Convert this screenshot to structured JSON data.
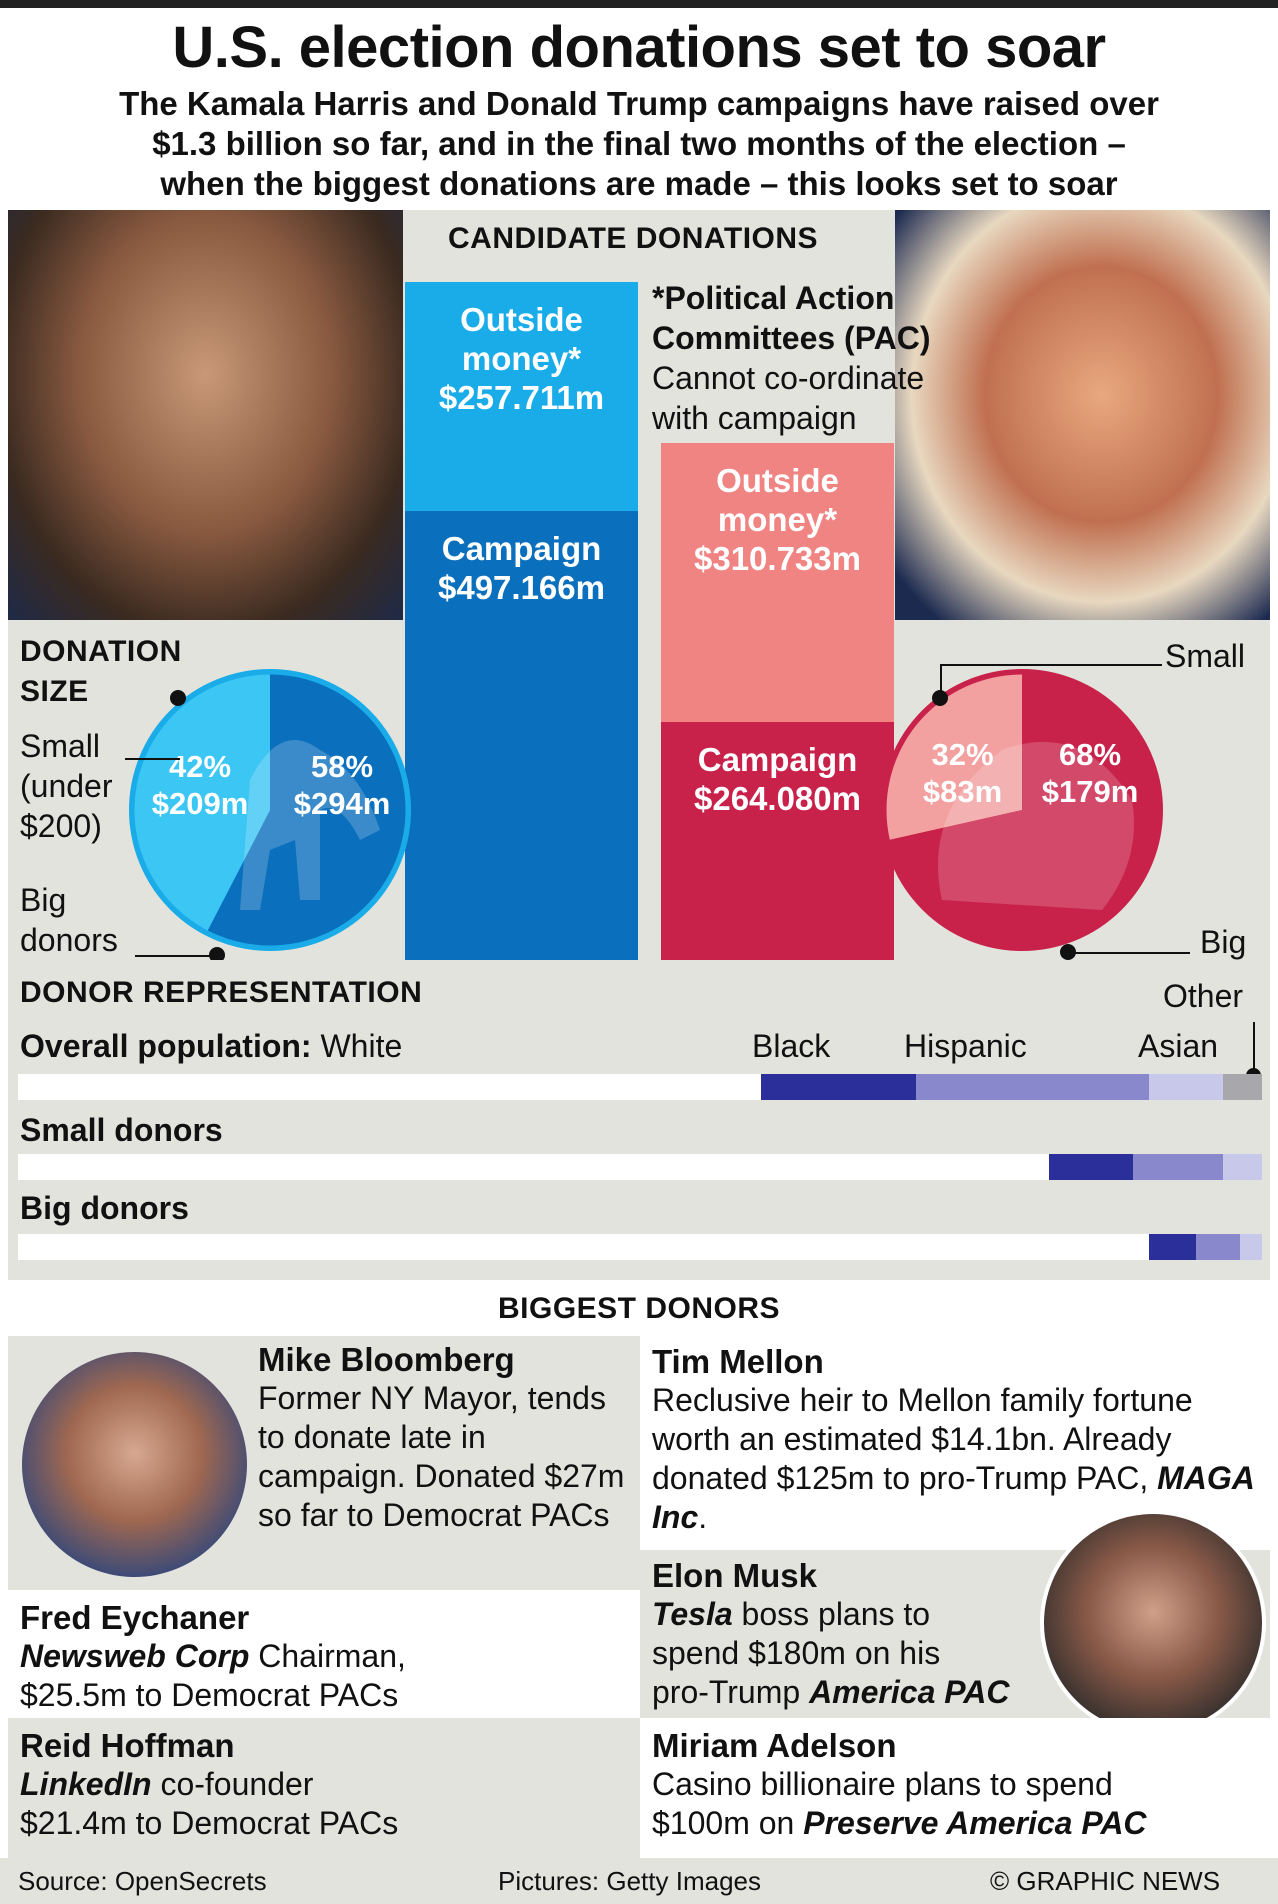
{
  "header": {
    "title": "U.S. election donations set to soar",
    "subtitle_lines": [
      "The Kamala Harris and Donald Trump campaigns have raised over",
      "$1.3 billion so far, and in the final two months of the election –",
      "when the biggest donations are made – this looks set to soar"
    ]
  },
  "candidate_section": {
    "heading": "CANDIDATE DONATIONS",
    "harris": {
      "outside_label": "Outside money*",
      "outside_value": "$257.711m",
      "campaign_label": "Campaign",
      "campaign_value": "$497.166m"
    },
    "trump": {
      "outside_label": "Outside money*",
      "outside_value": "$310.733m",
      "campaign_label": "Campaign",
      "campaign_value": "$264.080m"
    },
    "pac_note_title": "*Political Action Committees (PAC)",
    "pac_note_text": "Cannot co-ordinate with campaign"
  },
  "donation_size": {
    "heading": "DONATION SIZE",
    "small_label": "Small (under $200)",
    "big_label": "Big donors",
    "harris_small_pct": "42%",
    "harris_small_val": "$209m",
    "harris_big_pct": "58%",
    "harris_big_val": "$294m",
    "trump_small_pct": "32%",
    "trump_small_val": "$83m",
    "trump_big_pct": "68%",
    "trump_big_val": "$179m",
    "trump_small_label": "Small",
    "trump_big_label": "Big"
  },
  "representation": {
    "heading": "DONOR REPRESENTATION",
    "overall_label": "Overall population:",
    "small_label": "Small donors",
    "big_label": "Big donors",
    "legend": {
      "white": "White",
      "black": "Black",
      "hispanic": "Hispanic",
      "asian": "Asian",
      "other": "Other"
    }
  },
  "biggest_donors": {
    "heading": "BIGGEST DONORS",
    "bloomberg": {
      "name": "Mike Bloomberg",
      "text": "Former NY Mayor, tends to donate late in campaign. Donated $27m so far to Democrat PACs"
    },
    "eychaner": {
      "name": "Fred Eychaner",
      "company": "Newsweb Corp",
      "role": " Chairman,",
      "text": "$25.5m to Democrat PACs"
    },
    "hoffman": {
      "name": "Reid Hoffman",
      "company": "LinkedIn",
      "role": " co-founder",
      "text": "$21.4m to Democrat PACs"
    },
    "mellon": {
      "name": "Tim Mellon",
      "text": "Reclusive heir to Mellon family fortune worth an estimated $14.1bn. Already donated $125m to pro-Trump PAC,",
      "pac": "MAGA Inc",
      "end": "."
    },
    "musk": {
      "name": "Elon Musk",
      "company": "Tesla",
      "text1": " boss plans to",
      "text2": "spend $180m on his",
      "text3": "pro-Trump ",
      "pac": "America PAC"
    },
    "adelson": {
      "name": "Miriam Adelson",
      "text1": "Casino billionaire plans to spend",
      "text2": "$100m on ",
      "pac": "Preserve America PAC"
    }
  },
  "footer": {
    "source": "Source: OpenSecrets",
    "pictures": "Pictures: Getty Images",
    "credit": "© GRAPHIC NEWS"
  },
  "colors": {
    "dem_light": "#1aace8",
    "dem_dark": "#0a6fbd",
    "rep_light": "#f08482",
    "rep_dark": "#c8224a",
    "black": "#2a2f9a",
    "hispanic": "#8a88cc",
    "asian": "#c8c8ea",
    "other": "#a8a8ac"
  },
  "chart_data": {
    "type": "bar",
    "title": "CANDIDATE DONATIONS",
    "categories": [
      "Harris",
      "Trump"
    ],
    "series": [
      {
        "name": "Campaign",
        "values": [
          497.166,
          264.08
        ]
      },
      {
        "name": "Outside money*",
        "values": [
          257.711,
          310.733
        ]
      }
    ],
    "units": "$m",
    "donation_size": {
      "harris": {
        "small_pct": 42,
        "small_usd_m": 209,
        "big_pct": 58,
        "big_usd_m": 294
      },
      "trump": {
        "small_pct": 32,
        "small_usd_m": 83,
        "big_pct": 68,
        "big_usd_m": 179
      }
    },
    "donor_representation_pct": {
      "overall": {
        "White": 59.7,
        "Black": 12.5,
        "Hispanic": 18.7,
        "Asian": 6.0,
        "Other": 3.1
      },
      "small_donors": {
        "White": 82.9,
        "Black": 6.7,
        "Hispanic": 7.3,
        "Asian": 3.1,
        "Other": 0
      },
      "big_donors": {
        "White": 90.9,
        "Black": 3.8,
        "Hispanic": 3.5,
        "Asian": 1.8,
        "Other": 0
      }
    }
  }
}
